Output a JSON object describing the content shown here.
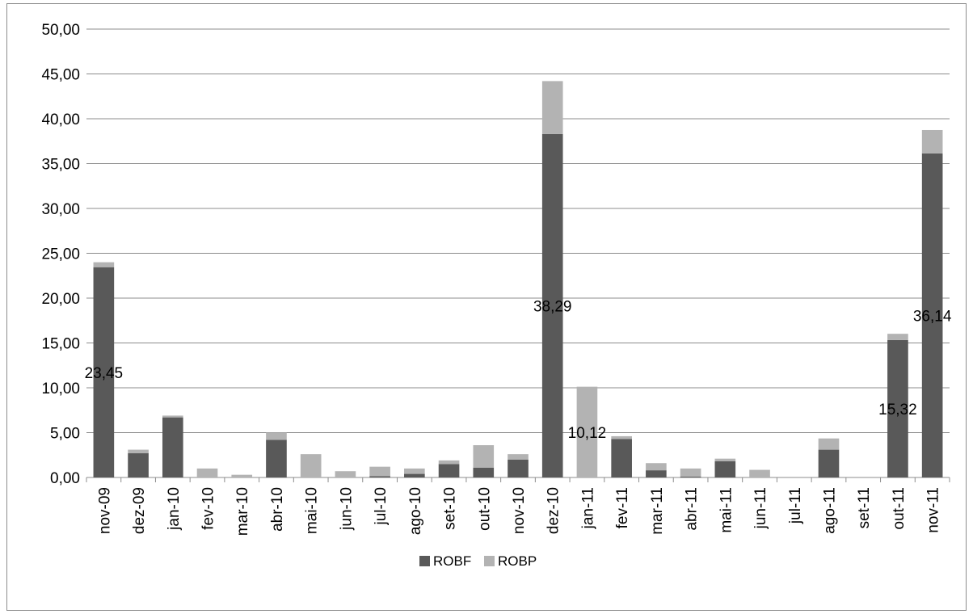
{
  "chart_data": {
    "type": "bar",
    "stacked": true,
    "categories": [
      "nov-09",
      "dez-09",
      "jan-10",
      "fev-10",
      "mar-10",
      "abr-10",
      "mai-10",
      "jun-10",
      "jul-10",
      "ago-10",
      "set-10",
      "out-10",
      "nov-10",
      "dez-10",
      "jan-11",
      "fev-11",
      "mar-11",
      "abr-11",
      "mai-11",
      "jun-11",
      "jul-11",
      "ago-11",
      "set-11",
      "out-11",
      "nov-11"
    ],
    "series": [
      {
        "name": "ROBF",
        "color": "#595959",
        "values": [
          23.45,
          2.7,
          6.7,
          0,
          0,
          4.2,
          0,
          0,
          0.15,
          0.4,
          1.5,
          1.1,
          2.0,
          38.29,
          0,
          4.3,
          0.8,
          0.1,
          1.8,
          0,
          0,
          3.1,
          0,
          15.32,
          36.14
        ]
      },
      {
        "name": "ROBP",
        "color": "#b3b3b3",
        "values": [
          0.55,
          0.4,
          0.2,
          1.0,
          0.3,
          0.8,
          2.6,
          0.7,
          1.05,
          0.6,
          0.4,
          2.5,
          0.6,
          5.91,
          10.12,
          0.3,
          0.8,
          0.9,
          0.3,
          0.85,
          0,
          1.25,
          0,
          0.7,
          2.6
        ]
      }
    ],
    "data_labels": [
      {
        "category": "nov-09",
        "text": "23,45"
      },
      {
        "category": "dez-10",
        "text": "38,29"
      },
      {
        "category": "jan-11",
        "text": "10,12"
      },
      {
        "category": "out-11",
        "text": "15,32"
      },
      {
        "category": "nov-11",
        "text": "36,14"
      }
    ],
    "ylim": [
      0,
      50
    ],
    "yticks": [
      "0,00",
      "5,00",
      "10,00",
      "15,00",
      "20,00",
      "25,00",
      "30,00",
      "35,00",
      "40,00",
      "45,00",
      "50,00"
    ],
    "grid": true,
    "legend_position": "bottom"
  }
}
